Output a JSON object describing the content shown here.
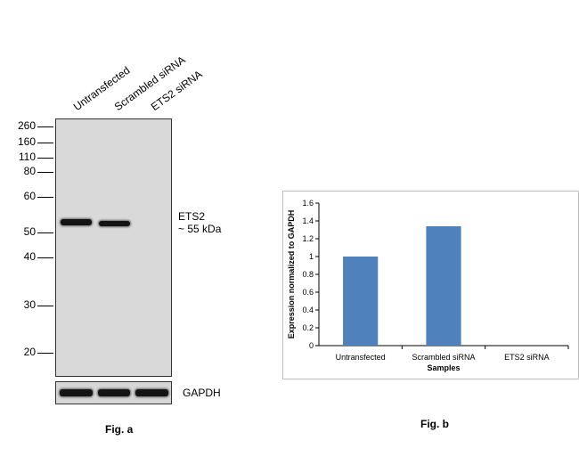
{
  "fig_a": {
    "lanes": [
      "Untransfected",
      "Scrambled siRNA",
      "ETS2 siRNA"
    ],
    "mw_markers": [
      "260",
      "160",
      "110",
      "80",
      "60",
      "50",
      "40",
      "30",
      "20"
    ],
    "target_label": "ETS2",
    "target_size": "~ 55 kDa",
    "loading_control": "GAPDH",
    "caption": "Fig. a",
    "band_color": "#141414",
    "membrane_color": "#d9d9d9"
  },
  "fig_b_caption": "Fig. b",
  "chart_data": {
    "type": "bar",
    "categories": [
      "Untransfected",
      "Scrambled siRNA",
      "ETS2 siRNA"
    ],
    "series": [
      {
        "values": [
          1.0,
          1.34,
          0.0
        ],
        "color": "#4f81bd"
      }
    ],
    "xlabel": "Samples",
    "ylabel": "Expression normalized to GAPDH",
    "ylim": [
      0,
      1.6
    ],
    "yticks": [
      "0",
      "0.2",
      "0.4",
      "0.6",
      "0.8",
      "1",
      "1.2",
      "1.4",
      "1.6"
    ],
    "grid": false,
    "legend": "none"
  }
}
